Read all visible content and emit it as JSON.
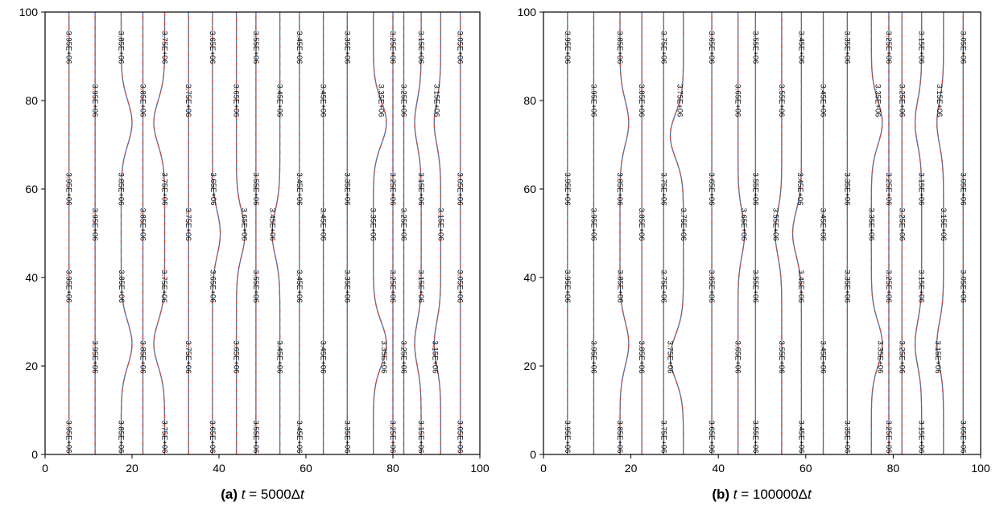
{
  "chart_data": [
    {
      "type": "contour",
      "xlim": [
        0,
        100
      ],
      "ylim": [
        0,
        100
      ],
      "xticks": [
        "0",
        "20",
        "40",
        "60",
        "80",
        "100"
      ],
      "yticks": [
        "0",
        "20",
        "40",
        "60",
        "80",
        "100"
      ],
      "caption": {
        "tag": "(a)",
        "var": "t",
        "eq": " = 5000Δ",
        "suffix": "t"
      },
      "line_colors": [
        "#c0504d",
        "#4f6bb0"
      ],
      "contours": [
        {
          "x": 5.5,
          "label": "3.95E+06"
        },
        {
          "x": 11.5,
          "label": "3.95E+06"
        },
        {
          "x": 17.5,
          "label": "3.85E+06",
          "bend": [
            {
              "y": 25,
              "dx": 2.5
            },
            {
              "y": 75,
              "dx": 2.5
            }
          ]
        },
        {
          "x": 22.5,
          "label": "3.85E+06"
        },
        {
          "x": 27.5,
          "label": "3.75E+06",
          "bend": [
            {
              "y": 25,
              "dx": -2.5
            },
            {
              "y": 75,
              "dx": -2.5
            }
          ]
        },
        {
          "x": 33,
          "label": "3.75E+06"
        },
        {
          "x": 38.5,
          "label": "3.65E+06",
          "bend": [
            {
              "y": 50,
              "dx": 1.8
            }
          ]
        },
        {
          "x": 44,
          "label": "3.65E+06",
          "bend": [
            {
              "y": 50,
              "dx": 2
            }
          ]
        },
        {
          "x": 48.5,
          "label": "3.55E+06"
        },
        {
          "x": 54,
          "label": "3.45E+06",
          "bend": [
            {
              "y": 50,
              "dx": -1.8
            }
          ]
        },
        {
          "x": 58.5,
          "label": "3.45E+06"
        },
        {
          "x": 64,
          "label": "3.45E+06"
        },
        {
          "x": 69.5,
          "label": "3.35E+06"
        },
        {
          "x": 75.5,
          "label": "3.35E+06",
          "bend": [
            {
              "y": 25,
              "dx": 3
            },
            {
              "y": 75,
              "dx": 3
            }
          ]
        },
        {
          "x": 80,
          "label": "3.25E+06"
        },
        {
          "x": 82.5,
          "label": "3.25E+06"
        },
        {
          "x": 86.5,
          "label": "3.15E+06",
          "bend": [
            {
              "y": 25,
              "dx": -1.5
            },
            {
              "y": 75,
              "dx": -1.5
            }
          ]
        },
        {
          "x": 91,
          "label": "3.15E+06",
          "bend": [
            {
              "y": 25,
              "dx": -1.5
            },
            {
              "y": 75,
              "dx": -1.5
            }
          ]
        },
        {
          "x": 95.5,
          "label": "3.05E+06"
        }
      ]
    },
    {
      "type": "contour",
      "xlim": [
        0,
        100
      ],
      "ylim": [
        0,
        100
      ],
      "xticks": [
        "0",
        "20",
        "40",
        "60",
        "80",
        "100"
      ],
      "yticks": [
        "0",
        "20",
        "40",
        "60",
        "80",
        "100"
      ],
      "caption": {
        "tag": "(b)",
        "var": "t",
        "eq": " = 100000Δ",
        "suffix": "t"
      },
      "line_colors": [
        "#c0504d",
        "#4f6bb0"
      ],
      "contours": [
        {
          "x": 5.5,
          "label": "3.95E+06"
        },
        {
          "x": 11.5,
          "label": "3.95E+06"
        },
        {
          "x": 17.5,
          "label": "3.85E+06",
          "bend": [
            {
              "y": 25,
              "dx": 2
            },
            {
              "y": 75,
              "dx": 2
            }
          ]
        },
        {
          "x": 22.5,
          "label": "3.85E+06"
        },
        {
          "x": 27.5,
          "label": "3.75E+06"
        },
        {
          "x": 32,
          "label": "3.75E+06",
          "bend": [
            {
              "y": 22,
              "dx": -3
            },
            {
              "y": 72,
              "dx": -3
            }
          ]
        },
        {
          "x": 38.5,
          "label": "3.65E+06"
        },
        {
          "x": 44.5,
          "label": "3.65E+06",
          "bend": [
            {
              "y": 50,
              "dx": 1.5
            }
          ]
        },
        {
          "x": 48.5,
          "label": "3.55E+06"
        },
        {
          "x": 54.5,
          "label": "3.55E+06",
          "bend": [
            {
              "y": 50,
              "dx": -1.5
            }
          ]
        },
        {
          "x": 59,
          "label": "3.45E+06",
          "bend": [
            {
              "y": 50,
              "dx": -2
            }
          ]
        },
        {
          "x": 64,
          "label": "3.45E+06"
        },
        {
          "x": 69.5,
          "label": "3.35E+06"
        },
        {
          "x": 75,
          "label": "3.35E+06",
          "bend": [
            {
              "y": 25,
              "dx": 2.5
            },
            {
              "y": 75,
              "dx": 2.5
            }
          ]
        },
        {
          "x": 79,
          "label": "3.25E+06"
        },
        {
          "x": 82,
          "label": "3.25E+06"
        },
        {
          "x": 86.5,
          "label": "3.15E+06",
          "bend": [
            {
              "y": 25,
              "dx": -1.5
            },
            {
              "y": 75,
              "dx": -1.5
            }
          ]
        },
        {
          "x": 91.5,
          "label": "3.15E+06",
          "bend": [
            {
              "y": 25,
              "dx": -1.5
            },
            {
              "y": 75,
              "dx": -1.5
            }
          ]
        },
        {
          "x": 96,
          "label": "3.05E+06"
        }
      ]
    }
  ]
}
